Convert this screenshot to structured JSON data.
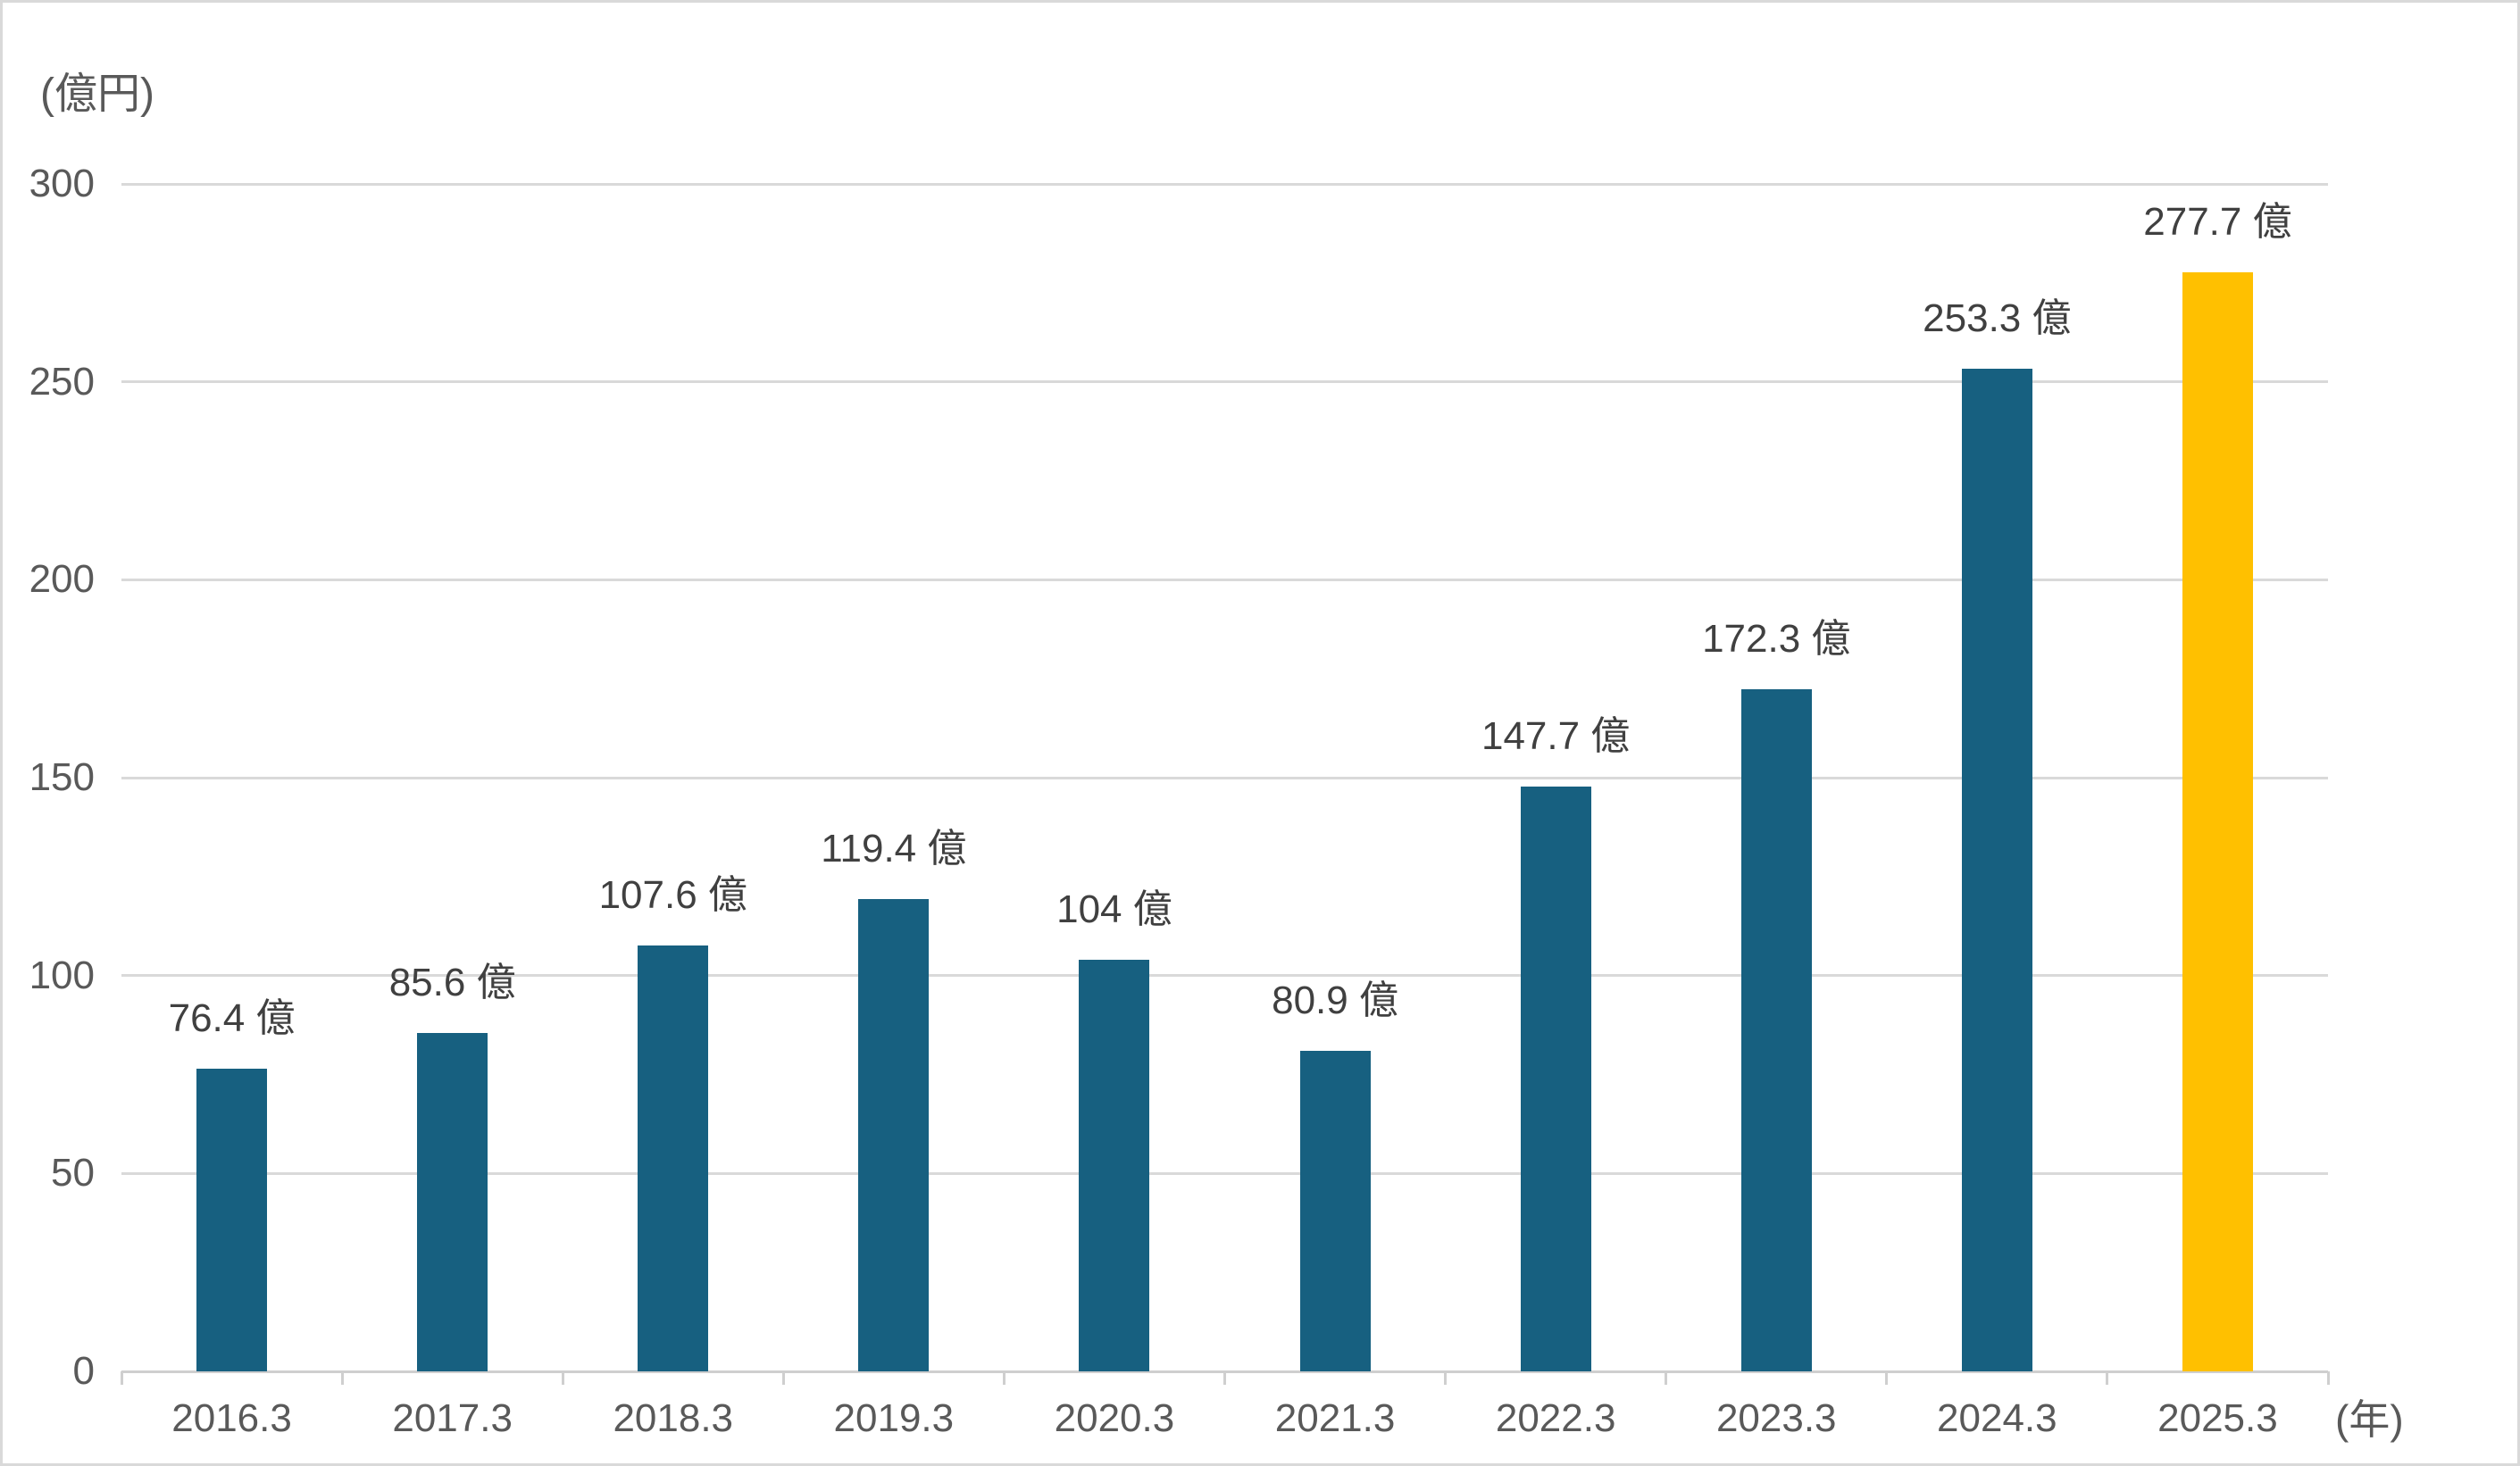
{
  "chart_data": {
    "type": "bar",
    "title": "",
    "unit_y": "(億円)",
    "unit_x": "(年)",
    "categories": [
      "2016.3",
      "2017.3",
      "2018.3",
      "2019.3",
      "2020.3",
      "2021.3",
      "2022.3",
      "2023.3",
      "2024.3",
      "2025.3"
    ],
    "values": [
      76.4,
      85.6,
      107.6,
      119.4,
      104,
      80.9,
      147.7,
      172.3,
      253.3,
      277.7
    ],
    "data_labels": [
      "76.4 億",
      "85.6 億",
      "107.6 億",
      "119.4 億",
      "104 億",
      "80.9 億",
      "147.7 億",
      "172.3 億",
      "253.3 億",
      "277.7 億"
    ],
    "ylim": [
      0,
      300
    ],
    "yticks": [
      0,
      50,
      100,
      150,
      200,
      250,
      300
    ],
    "grid": true,
    "legend": false,
    "bar_color": "#176080",
    "highlight_color": "#FFC000",
    "highlight_index": 9,
    "label_color": "#404040",
    "tick_color": "#595959",
    "gridline_color": "#D9D9D9"
  }
}
